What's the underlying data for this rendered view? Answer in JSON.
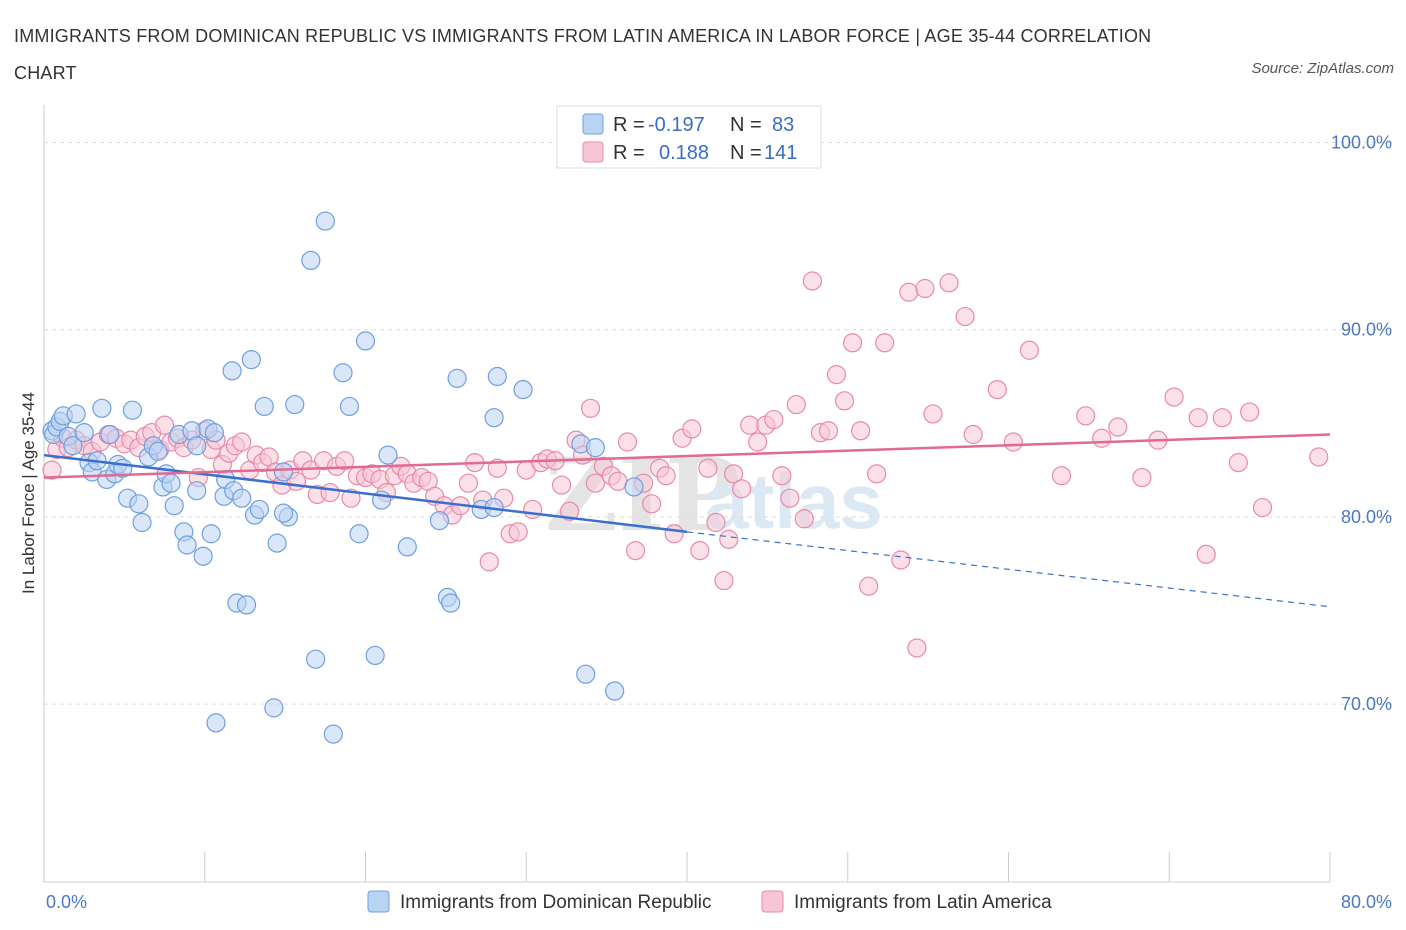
{
  "header": {
    "title": "IMMIGRANTS FROM DOMINICAN REPUBLIC VS IMMIGRANTS FROM LATIN AMERICA IN LABOR FORCE | AGE 35-44 CORRELATION CHART",
    "source": "Source: ZipAtlas.com"
  },
  "watermark": {
    "zip": "ZIP",
    "atlas": "atlas"
  },
  "colors": {
    "blue_fill": "#b9d3f3",
    "blue_stroke": "#6f9fe0",
    "blue_line": "#3a6fcf",
    "pink_fill": "#f7c6d6",
    "pink_stroke": "#e88aaa",
    "pink_line": "#e06a94",
    "grid": "#dddddd",
    "axis_label": "#4a78c2"
  },
  "legend": {
    "r_label": "R =",
    "n_label": "N =",
    "series1": {
      "r": "-0.197",
      "n": "83"
    },
    "series2": {
      "r": "0.188",
      "n": "141"
    }
  },
  "chart_data": {
    "type": "scatter",
    "title": "IMMIGRANTS FROM DOMINICAN REPUBLIC VS IMMIGRANTS FROM LATIN AMERICA IN LABOR FORCE | AGE 35-44 CORRELATION CHART",
    "xlabel": "",
    "ylabel": "In Labor Force | Age 35-44",
    "xlim": [
      0,
      80
    ],
    "ylim": [
      60.5,
      102
    ],
    "x_tick_labels": [
      "0.0%",
      "80.0%"
    ],
    "y_ticks": [
      70,
      80,
      90,
      100
    ],
    "y_tick_labels": [
      "70.0%",
      "80.0%",
      "90.0%",
      "100.0%"
    ],
    "legend_position": "top-center",
    "series": [
      {
        "name": "Immigrants from Dominican Republic",
        "color": "#6f9fe0",
        "r": -0.197,
        "n": 83,
        "trend": {
          "x0": 0,
          "y0": 83.3,
          "x1": 40,
          "y1": 79.2,
          "dash_to_x": 80,
          "dash_to_y": 75.2
        },
        "points": [
          [
            0.5,
            84.6
          ],
          [
            0.6,
            84.4
          ],
          [
            0.8,
            84.8
          ],
          [
            1.0,
            85.1
          ],
          [
            1.2,
            85.4
          ],
          [
            1.5,
            84.3
          ],
          [
            1.8,
            83.8
          ],
          [
            2.0,
            85.5
          ],
          [
            2.5,
            84.5
          ],
          [
            2.8,
            82.9
          ],
          [
            3.0,
            82.4
          ],
          [
            3.3,
            83.0
          ],
          [
            3.6,
            85.8
          ],
          [
            3.9,
            82.0
          ],
          [
            4.1,
            84.4
          ],
          [
            4.4,
            82.3
          ],
          [
            4.6,
            82.8
          ],
          [
            4.9,
            82.6
          ],
          [
            5.2,
            81.0
          ],
          [
            5.5,
            85.7
          ],
          [
            5.9,
            80.7
          ],
          [
            6.1,
            79.7
          ],
          [
            6.5,
            83.2
          ],
          [
            6.8,
            83.8
          ],
          [
            7.1,
            83.5
          ],
          [
            7.4,
            81.6
          ],
          [
            7.6,
            82.3
          ],
          [
            7.9,
            81.8
          ],
          [
            8.1,
            80.6
          ],
          [
            8.4,
            84.4
          ],
          [
            8.7,
            79.2
          ],
          [
            8.9,
            78.5
          ],
          [
            9.2,
            84.6
          ],
          [
            9.5,
            83.8
          ],
          [
            9.9,
            77.9
          ],
          [
            10.2,
            84.7
          ],
          [
            10.4,
            79.1
          ],
          [
            10.6,
            84.5
          ],
          [
            10.7,
            69.0
          ],
          [
            11.2,
            81.1
          ],
          [
            11.3,
            82.0
          ],
          [
            11.7,
            87.8
          ],
          [
            11.8,
            81.4
          ],
          [
            12.0,
            75.4
          ],
          [
            12.3,
            81.0
          ],
          [
            12.6,
            75.3
          ],
          [
            12.9,
            88.4
          ],
          [
            13.1,
            80.1
          ],
          [
            13.4,
            80.4
          ],
          [
            13.7,
            85.9
          ],
          [
            14.3,
            69.8
          ],
          [
            14.5,
            78.6
          ],
          [
            14.9,
            82.4
          ],
          [
            15.2,
            80.0
          ],
          [
            15.6,
            86.0
          ],
          [
            16.6,
            93.7
          ],
          [
            16.9,
            72.4
          ],
          [
            17.5,
            95.8
          ],
          [
            18.0,
            68.4
          ],
          [
            18.6,
            87.7
          ],
          [
            19.0,
            85.9
          ],
          [
            19.6,
            79.1
          ],
          [
            20.0,
            89.4
          ],
          [
            20.6,
            72.6
          ],
          [
            21.4,
            83.3
          ],
          [
            22.6,
            78.4
          ],
          [
            24.6,
            79.8
          ],
          [
            25.1,
            75.7
          ],
          [
            25.3,
            75.4
          ],
          [
            25.7,
            87.4
          ],
          [
            27.2,
            80.4
          ],
          [
            28.0,
            85.3
          ],
          [
            28.2,
            87.5
          ],
          [
            29.8,
            86.8
          ],
          [
            33.4,
            83.9
          ],
          [
            33.7,
            71.6
          ],
          [
            34.3,
            83.7
          ],
          [
            35.5,
            70.7
          ],
          [
            36.7,
            81.6
          ],
          [
            28.0,
            80.5
          ],
          [
            21.0,
            80.9
          ],
          [
            14.9,
            80.2
          ],
          [
            9.5,
            81.4
          ]
        ]
      },
      {
        "name": "Immigrants from Latin America",
        "color": "#e88aaa",
        "r": 0.188,
        "n": 141,
        "trend": {
          "x0": 0,
          "y0": 82.1,
          "x1": 80,
          "y1": 84.4
        },
        "points": [
          [
            0.5,
            82.5
          ],
          [
            0.8,
            83.6
          ],
          [
            1.2,
            84.2
          ],
          [
            1.5,
            83.7
          ],
          [
            2.0,
            84.1
          ],
          [
            2.5,
            83.8
          ],
          [
            3.0,
            83.5
          ],
          [
            3.5,
            84.0
          ],
          [
            4.0,
            84.4
          ],
          [
            4.5,
            84.2
          ],
          [
            5.0,
            83.9
          ],
          [
            5.4,
            84.1
          ],
          [
            5.9,
            83.7
          ],
          [
            6.3,
            84.3
          ],
          [
            6.7,
            84.5
          ],
          [
            7.2,
            83.6
          ],
          [
            7.5,
            84.9
          ],
          [
            7.9,
            84.0
          ],
          [
            8.3,
            84.2
          ],
          [
            8.7,
            83.7
          ],
          [
            9.2,
            84.1
          ],
          [
            9.6,
            82.1
          ],
          [
            10.0,
            84.6
          ],
          [
            10.4,
            83.6
          ],
          [
            10.7,
            84.1
          ],
          [
            11.1,
            82.8
          ],
          [
            11.5,
            83.4
          ],
          [
            11.9,
            83.8
          ],
          [
            12.3,
            84.0
          ],
          [
            12.8,
            82.5
          ],
          [
            13.2,
            83.3
          ],
          [
            13.6,
            82.9
          ],
          [
            14.0,
            83.2
          ],
          [
            14.4,
            82.4
          ],
          [
            14.8,
            81.7
          ],
          [
            15.3,
            82.5
          ],
          [
            15.7,
            81.9
          ],
          [
            16.1,
            83.0
          ],
          [
            16.6,
            82.5
          ],
          [
            17.0,
            81.2
          ],
          [
            17.4,
            83.0
          ],
          [
            17.8,
            81.3
          ],
          [
            18.2,
            82.7
          ],
          [
            18.7,
            83.0
          ],
          [
            19.1,
            81.0
          ],
          [
            19.5,
            82.2
          ],
          [
            20.0,
            82.1
          ],
          [
            20.4,
            82.3
          ],
          [
            20.9,
            82.0
          ],
          [
            21.3,
            81.3
          ],
          [
            21.8,
            82.2
          ],
          [
            22.2,
            82.7
          ],
          [
            22.6,
            82.3
          ],
          [
            23.0,
            81.8
          ],
          [
            23.5,
            82.1
          ],
          [
            23.9,
            81.9
          ],
          [
            24.3,
            81.1
          ],
          [
            24.9,
            80.6
          ],
          [
            25.4,
            80.1
          ],
          [
            25.9,
            80.6
          ],
          [
            26.4,
            81.8
          ],
          [
            26.8,
            82.9
          ],
          [
            27.3,
            80.9
          ],
          [
            27.7,
            77.6
          ],
          [
            28.2,
            82.6
          ],
          [
            28.6,
            81.0
          ],
          [
            29.0,
            79.1
          ],
          [
            29.5,
            79.2
          ],
          [
            30.0,
            82.5
          ],
          [
            30.4,
            80.4
          ],
          [
            30.9,
            82.9
          ],
          [
            31.3,
            83.1
          ],
          [
            31.8,
            83.0
          ],
          [
            32.2,
            81.7
          ],
          [
            32.7,
            80.3
          ],
          [
            33.1,
            84.1
          ],
          [
            33.5,
            83.3
          ],
          [
            34.0,
            85.8
          ],
          [
            34.3,
            81.8
          ],
          [
            34.8,
            82.7
          ],
          [
            35.3,
            82.2
          ],
          [
            35.7,
            81.9
          ],
          [
            36.3,
            84.0
          ],
          [
            36.8,
            78.2
          ],
          [
            37.3,
            81.8
          ],
          [
            37.8,
            80.7
          ],
          [
            38.3,
            82.6
          ],
          [
            38.7,
            82.2
          ],
          [
            39.2,
            79.1
          ],
          [
            39.7,
            84.2
          ],
          [
            40.3,
            84.7
          ],
          [
            40.8,
            78.2
          ],
          [
            41.3,
            82.6
          ],
          [
            41.8,
            79.7
          ],
          [
            42.3,
            76.6
          ],
          [
            42.6,
            78.8
          ],
          [
            42.9,
            82.3
          ],
          [
            43.4,
            81.5
          ],
          [
            43.9,
            84.9
          ],
          [
            44.4,
            84.0
          ],
          [
            44.9,
            84.9
          ],
          [
            45.4,
            85.2
          ],
          [
            45.9,
            82.2
          ],
          [
            46.4,
            81.0
          ],
          [
            46.8,
            86.0
          ],
          [
            47.3,
            79.9
          ],
          [
            47.8,
            92.6
          ],
          [
            48.3,
            84.5
          ],
          [
            48.8,
            84.6
          ],
          [
            49.3,
            87.6
          ],
          [
            49.8,
            86.2
          ],
          [
            50.3,
            89.3
          ],
          [
            50.8,
            84.6
          ],
          [
            51.3,
            76.3
          ],
          [
            51.8,
            82.3
          ],
          [
            52.3,
            89.3
          ],
          [
            53.3,
            77.7
          ],
          [
            53.8,
            92.0
          ],
          [
            54.3,
            73.0
          ],
          [
            54.8,
            92.2
          ],
          [
            55.3,
            85.5
          ],
          [
            56.3,
            92.5
          ],
          [
            57.3,
            90.7
          ],
          [
            57.8,
            84.4
          ],
          [
            59.3,
            86.8
          ],
          [
            60.3,
            84.0
          ],
          [
            61.3,
            88.9
          ],
          [
            63.3,
            82.2
          ],
          [
            64.8,
            85.4
          ],
          [
            65.8,
            84.2
          ],
          [
            66.8,
            84.8
          ],
          [
            68.3,
            82.1
          ],
          [
            69.3,
            84.1
          ],
          [
            70.3,
            86.4
          ],
          [
            71.8,
            85.3
          ],
          [
            72.3,
            78.0
          ],
          [
            73.3,
            85.3
          ],
          [
            74.3,
            82.9
          ],
          [
            75.8,
            80.5
          ],
          [
            79.3,
            83.2
          ],
          [
            75.0,
            85.6
          ]
        ]
      }
    ]
  },
  "bottom_legend": {
    "item1": "Immigrants from Dominican Republic",
    "item2": "Immigrants from Latin America"
  }
}
